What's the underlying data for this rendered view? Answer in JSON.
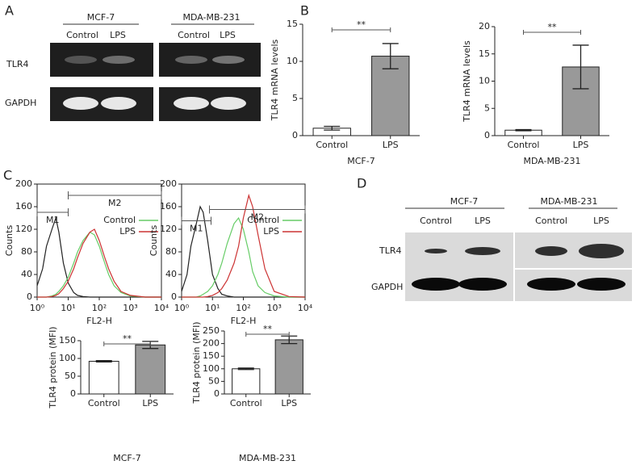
{
  "panel_labels": [
    "A",
    "B",
    "C",
    "D"
  ],
  "blot_a": {
    "groups": [
      "MCF-7",
      "MDA-MB-231"
    ],
    "lanes": [
      "Control",
      "LPS",
      "Control",
      "LPS"
    ],
    "rows": [
      "TLR4",
      "GAPDH"
    ]
  },
  "blot_d": {
    "groups": [
      "MCF-7",
      "MDA-MB-231"
    ],
    "lanes": [
      "Control",
      "LPS",
      "Control",
      "LPS"
    ],
    "rows": [
      "TLR4",
      "GAPDH"
    ]
  },
  "chart_data": [
    {
      "type": "bar",
      "ylabel": "TLR4 mRNA levels",
      "xlabel": "MCF-7",
      "annotation": "**",
      "categories": [
        "Control",
        "LPS"
      ],
      "values": [
        1.0,
        10.7
      ],
      "errors": [
        0.25,
        1.7
      ],
      "colors": [
        "#ffffff",
        "#999999"
      ],
      "ylim": [
        0,
        15
      ],
      "yticks": [
        0,
        5,
        10,
        15
      ]
    },
    {
      "type": "bar",
      "ylabel": "TLR4 mRNA levels",
      "xlabel": "MDA-MB-231",
      "annotation": "**",
      "categories": [
        "Control",
        "LPS"
      ],
      "values": [
        1.0,
        12.6
      ],
      "errors": [
        0.1,
        4.0
      ],
      "colors": [
        "#ffffff",
        "#999999"
      ],
      "ylim": [
        0,
        20
      ],
      "yticks": [
        0,
        5,
        10,
        15,
        20
      ]
    },
    {
      "type": "line",
      "xscale": "log",
      "ylabel": "Counts",
      "xlabel": "FL2-H",
      "legend": "upper right",
      "x": [
        1,
        1.5,
        2,
        3,
        4,
        5,
        7,
        10,
        15,
        20,
        30,
        50,
        70,
        100,
        150,
        200,
        300,
        500,
        1000,
        3000,
        10000
      ],
      "series": [
        {
          "color": "#222222",
          "values": [
            20,
            50,
            90,
            120,
            140,
            115,
            60,
            25,
            8,
            3,
            1,
            0,
            0,
            0,
            0,
            0,
            0,
            0,
            0,
            0,
            0
          ]
        },
        {
          "name": "Control",
          "color": "#66cc66",
          "values": [
            0,
            0,
            0,
            2,
            5,
            10,
            20,
            35,
            60,
            80,
            100,
            115,
            110,
            90,
            60,
            40,
            20,
            8,
            2,
            0,
            0
          ]
        },
        {
          "name": "LPS",
          "color": "#cc3333",
          "values": [
            0,
            0,
            0,
            1,
            3,
            6,
            15,
            28,
            50,
            70,
            95,
            115,
            120,
            100,
            70,
            50,
            28,
            10,
            3,
            0,
            0
          ]
        }
      ],
      "gates": [
        {
          "label": "M1",
          "range": [
            1,
            10
          ],
          "y": 150
        },
        {
          "label": "M2",
          "range": [
            10,
            10000
          ],
          "y": 180
        }
      ],
      "xlim": [
        1,
        10000
      ],
      "xticks": [
        {
          "value": 1,
          "label": "10⁰"
        },
        {
          "value": 10,
          "label": "10¹"
        },
        {
          "value": 100,
          "label": "10²"
        },
        {
          "value": 1000,
          "label": "10³"
        },
        {
          "value": 10000,
          "label": "10⁴"
        }
      ],
      "ylim": [
        0,
        200
      ],
      "yticks": [
        0,
        40,
        80,
        120,
        160,
        200
      ]
    },
    {
      "type": "line",
      "xscale": "log",
      "ylabel": "Counts",
      "xlabel": "FL2-H",
      "legend": "upper right",
      "x": [
        1,
        1.5,
        2,
        3,
        4,
        5,
        7,
        10,
        15,
        20,
        30,
        50,
        70,
        100,
        150,
        200,
        300,
        500,
        1000,
        3000,
        10000
      ],
      "series": [
        {
          "color": "#222222",
          "values": [
            10,
            40,
            90,
            130,
            160,
            150,
            100,
            40,
            15,
            5,
            2,
            0,
            0,
            0,
            0,
            0,
            0,
            0,
            0,
            0,
            0
          ]
        },
        {
          "name": "Control",
          "color": "#66cc66",
          "values": [
            0,
            0,
            0,
            0,
            2,
            5,
            10,
            20,
            40,
            60,
            95,
            130,
            140,
            120,
            80,
            45,
            20,
            8,
            2,
            0,
            0
          ]
        },
        {
          "name": "LPS",
          "color": "#cc3333",
          "values": [
            0,
            0,
            0,
            0,
            0,
            0,
            1,
            3,
            8,
            15,
            30,
            60,
            90,
            140,
            180,
            160,
            110,
            50,
            10,
            1,
            0
          ]
        }
      ],
      "gates": [
        {
          "label": "M1",
          "range": [
            1,
            9
          ],
          "y": 135
        },
        {
          "label": "M2",
          "range": [
            8,
            10000
          ],
          "y": 155
        }
      ],
      "xlim": [
        1,
        10000
      ],
      "xticks": [
        {
          "value": 1,
          "label": "10⁰"
        },
        {
          "value": 10,
          "label": "10¹"
        },
        {
          "value": 100,
          "label": "10²"
        },
        {
          "value": 1000,
          "label": "10³"
        },
        {
          "value": 10000,
          "label": "10⁴"
        }
      ],
      "ylim": [
        0,
        200
      ],
      "yticks": [
        0,
        40,
        80,
        120,
        160,
        200
      ]
    },
    {
      "type": "bar",
      "ylabel": "TLR4 protein (MFI)",
      "xlabel": "MCF-7",
      "annotation": "**",
      "categories": [
        "Control",
        "LPS"
      ],
      "values": [
        92,
        138
      ],
      "errors": [
        2,
        10
      ],
      "colors": [
        "#ffffff",
        "#999999"
      ],
      "ylim": [
        0,
        150
      ],
      "yticks": [
        0,
        50,
        100,
        150
      ]
    },
    {
      "type": "bar",
      "ylabel": "TLR4 protein (MFI)",
      "xlabel": "MDA-MB-231",
      "annotation": "**",
      "categories": [
        "Control",
        "LPS"
      ],
      "values": [
        100,
        215
      ],
      "errors": [
        3,
        15
      ],
      "colors": [
        "#ffffff",
        "#999999"
      ],
      "ylim": [
        0,
        250
      ],
      "yticks": [
        0,
        50,
        100,
        150,
        200,
        250
      ]
    }
  ]
}
